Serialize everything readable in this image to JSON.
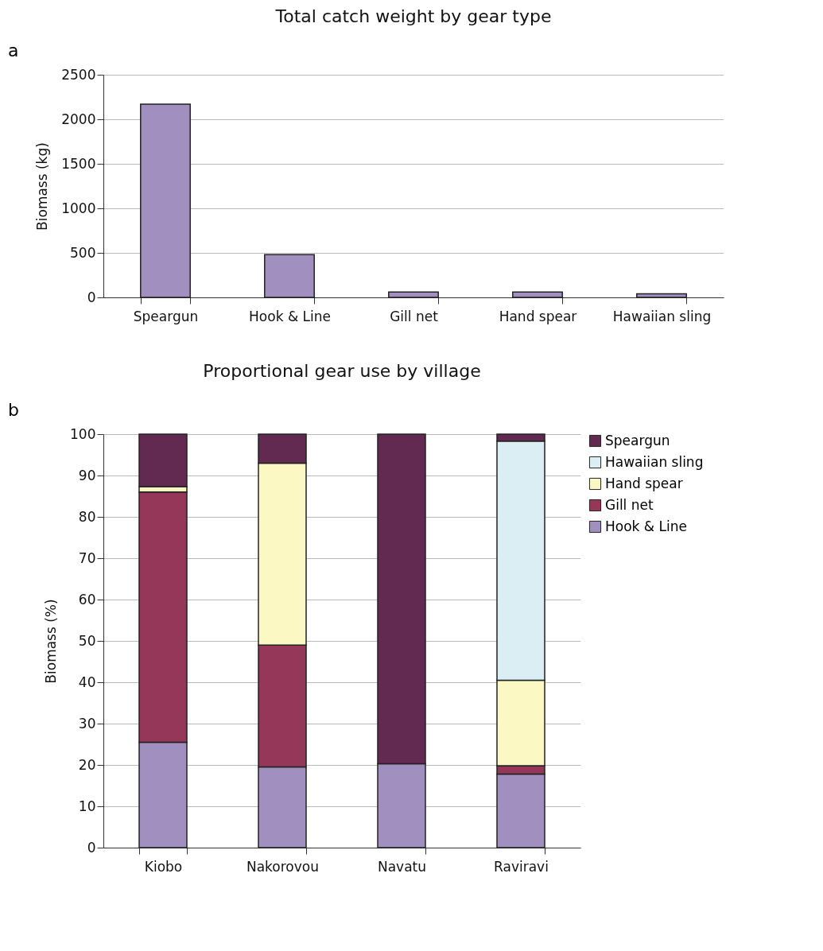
{
  "chart_data": [
    {
      "type": "bar",
      "title": "Total catch weight by gear type",
      "ylabel": "Biomass (kg)",
      "annotations": [
        "a"
      ],
      "categories": [
        "Speargun",
        "Hook & Line",
        "Gill net",
        "Hand spear",
        "Hawaiian sling"
      ],
      "values": [
        2170,
        480,
        60,
        60,
        40
      ],
      "color": "#a190bf",
      "ylim": [
        0,
        2500
      ],
      "yticks": [
        0,
        500,
        1000,
        1500,
        2000,
        2500
      ],
      "grid": "y",
      "legend": false
    },
    {
      "type": "bar",
      "title": "Proportional gear use by village",
      "ylabel": "Biomass (%)",
      "annotations": [
        "b"
      ],
      "categories": [
        "Kiobo",
        "Nakorovou",
        "Navatu",
        "Raviravi"
      ],
      "stacked": true,
      "series": [
        {
          "name": "Hook & Line",
          "color": "#a190bf",
          "values": [
            25.5,
            19.5,
            20.3,
            17.8
          ]
        },
        {
          "name": "Gill net",
          "color": "#953758",
          "values": [
            60.5,
            29.5,
            null,
            2
          ]
        },
        {
          "name": "Hand spear",
          "color": "#fcf8c4",
          "values": [
            1.3,
            44,
            null,
            20.7
          ]
        },
        {
          "name": "Hawaiian sling",
          "color": "#daeef3",
          "values": [
            null,
            null,
            null,
            57.8
          ]
        },
        {
          "name": "Speargun",
          "color": "#632a51",
          "values": [
            12.7,
            7,
            79.7,
            1.7
          ]
        }
      ],
      "ylim": [
        0,
        100
      ],
      "yticks": [
        0,
        10,
        20,
        30,
        40,
        50,
        60,
        70,
        80,
        90,
        100
      ],
      "grid": "y",
      "legend": "right"
    }
  ]
}
